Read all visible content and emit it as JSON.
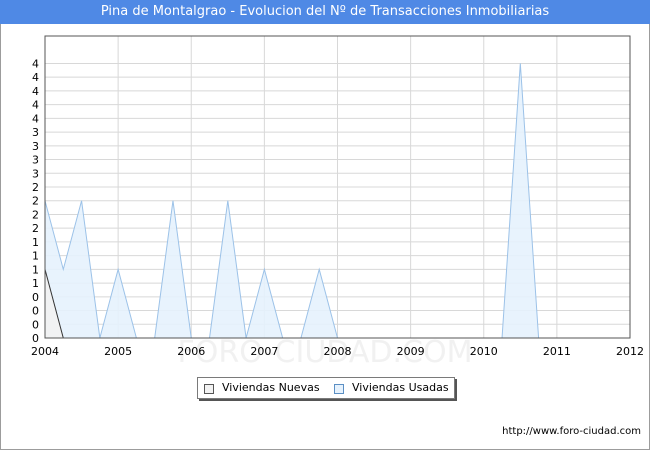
{
  "title": "Pina de Montalgrao - Evolucion del Nº de Transacciones Inmobiliarias",
  "source": "http://www.foro-ciudad.com",
  "watermark": "FORO-CIUDAD.COM",
  "colors": {
    "title_bar": "#4f89e5",
    "nuevas_fill": "#f2f2f2",
    "nuevas_line": "#333333",
    "usadas_fill": "#e6f2fd",
    "usadas_line": "#9cc2e8",
    "grid": "#d8d8d8"
  },
  "chart_data": {
    "type": "area",
    "title": "Pina de Montalgrao - Evolucion del Nº de Transacciones Inmobiliarias",
    "xlabel": "",
    "ylabel": "",
    "xlim": [
      2004,
      2012
    ],
    "ylim": [
      0,
      4.4
    ],
    "x_ticks": [
      "2004",
      "2005",
      "2006",
      "2007",
      "2008",
      "2009",
      "2010",
      "2011",
      "2012"
    ],
    "y_ticks": [
      "0",
      "0",
      "0",
      "0",
      "1",
      "1",
      "1",
      "1",
      "2",
      "2",
      "2",
      "2",
      "3",
      "3",
      "3",
      "3",
      "4",
      "4",
      "4",
      "4",
      "4"
    ],
    "y_tick_values": [
      0,
      0.2,
      0.4,
      0.6,
      0.8,
      1.0,
      1.2,
      1.4,
      1.6,
      1.8,
      2.0,
      2.2,
      2.4,
      2.6,
      2.8,
      3.0,
      3.2,
      3.4,
      3.6,
      3.8,
      4.0
    ],
    "grid": true,
    "legend": "bottom-center",
    "series": [
      {
        "name": "Viviendas Nuevas",
        "x": [
          2004.0,
          2004.25
        ],
        "y": [
          1,
          0
        ]
      },
      {
        "name": "Viviendas Usadas",
        "x": [
          2004.0,
          2004.25,
          2004.5,
          2004.75,
          2005.0,
          2005.25,
          2005.5,
          2005.75,
          2006.0,
          2006.25,
          2006.5,
          2006.75,
          2007.0,
          2007.25,
          2007.5,
          2007.75,
          2008.0,
          2008.25,
          2008.5,
          2008.75,
          2009.0,
          2009.25,
          2009.5,
          2009.75,
          2010.0,
          2010.25,
          2010.5,
          2010.75,
          2011.0,
          2011.25,
          2011.5,
          2011.75,
          2012.0
        ],
        "y": [
          2,
          1,
          2,
          0,
          1,
          0,
          0,
          2,
          0,
          0,
          2,
          0,
          1,
          0,
          0,
          1,
          0,
          0,
          0,
          0,
          0,
          0,
          0,
          0,
          0,
          0,
          4,
          0,
          0,
          0,
          0,
          0,
          0
        ]
      }
    ]
  },
  "legend_items": [
    {
      "label": "Viviendas Nuevas"
    },
    {
      "label": "Viviendas Usadas"
    }
  ]
}
